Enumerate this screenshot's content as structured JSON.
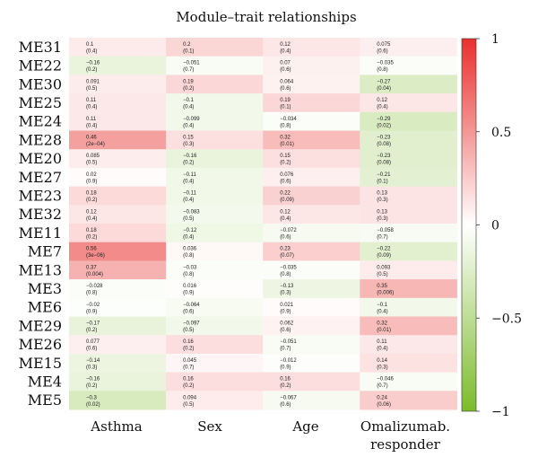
{
  "chart_data": {
    "type": "heatmap",
    "title": "Module–trait relationships",
    "rows": [
      "ME31",
      "ME22",
      "ME30",
      "ME25",
      "ME24",
      "ME28",
      "ME20",
      "ME27",
      "ME23",
      "ME32",
      "ME11",
      "ME7",
      "ME13",
      "ME3",
      "ME6",
      "ME29",
      "ME26",
      "ME15",
      "ME4",
      "ME5"
    ],
    "columns": [
      "Asthma",
      "Sex",
      "Age",
      "Omalizumab. responder"
    ],
    "values": [
      [
        0.1,
        0.2,
        0.12,
        0.075
      ],
      [
        -0.16,
        -0.051,
        0.07,
        -0.035
      ],
      [
        0.091,
        0.19,
        0.064,
        -0.27
      ],
      [
        0.11,
        -0.1,
        0.19,
        0.12
      ],
      [
        0.11,
        -0.099,
        -0.034,
        -0.29
      ],
      [
        0.46,
        0.15,
        0.32,
        -0.23
      ],
      [
        0.085,
        -0.16,
        0.15,
        -0.23
      ],
      [
        0.02,
        -0.11,
        0.076,
        -0.21
      ],
      [
        0.18,
        -0.11,
        0.22,
        0.13
      ],
      [
        0.12,
        -0.083,
        0.12,
        0.13
      ],
      [
        0.18,
        -0.12,
        -0.072,
        -0.058
      ],
      [
        0.56,
        0.036,
        0.23,
        -0.22
      ],
      [
        0.37,
        -0.03,
        -0.035,
        0.093
      ],
      [
        -0.028,
        0.016,
        -0.13,
        0.35
      ],
      [
        -0.02,
        -0.064,
        0.021,
        -0.1
      ],
      [
        -0.17,
        -0.097,
        0.062,
        0.32
      ],
      [
        0.077,
        0.16,
        -0.051,
        0.11
      ],
      [
        -0.14,
        0.045,
        -0.012,
        0.14
      ],
      [
        -0.16,
        0.16,
        0.16,
        -0.046
      ],
      [
        -0.3,
        0.094,
        -0.067,
        0.24
      ]
    ],
    "pvalues": [
      [
        "(0.4)",
        "(0.1)",
        "(0.4)",
        "(0.6)"
      ],
      [
        "(0.2)",
        "(0.7)",
        "(0.6)",
        "(0.8)"
      ],
      [
        "(0.5)",
        "(0.2)",
        "(0.6)",
        "(0.04)"
      ],
      [
        "(0.4)",
        "(0.4)",
        "(0.1)",
        "(0.4)"
      ],
      [
        "(0.4)",
        "(0.4)",
        "(0.8)",
        "(0.02)"
      ],
      [
        "(2e−04)",
        "(0.3)",
        "(0.01)",
        "(0.08)"
      ],
      [
        "(0.5)",
        "(0.2)",
        "(0.2)",
        "(0.08)"
      ],
      [
        "(0.9)",
        "(0.4)",
        "(0.6)",
        "(0.1)"
      ],
      [
        "(0.2)",
        "(0.4)",
        "(0.09)",
        "(0.3)"
      ],
      [
        "(0.4)",
        "(0.5)",
        "(0.4)",
        "(0.3)"
      ],
      [
        "(0.2)",
        "(0.4)",
        "(0.6)",
        "(0.7)"
      ],
      [
        "(3e−06)",
        "(0.8)",
        "(0.07)",
        "(0.09)"
      ],
      [
        "(0.004)",
        "(0.8)",
        "(0.8)",
        "(0.5)"
      ],
      [
        "(0.8)",
        "(0.9)",
        "(0.3)",
        "(0.006)"
      ],
      [
        "(0.9)",
        "(0.6)",
        "(0.9)",
        "(0.4)"
      ],
      [
        "(0.2)",
        "(0.5)",
        "(0.6)",
        "(0.01)"
      ],
      [
        "(0.6)",
        "(0.2)",
        "(0.7)",
        "(0.4)"
      ],
      [
        "(0.3)",
        "(0.7)",
        "(0.9)",
        "(0.3)"
      ],
      [
        "(0.2)",
        "(0.2)",
        "(0.2)",
        "(0.7)"
      ],
      [
        "(0.02)",
        "(0.5)",
        "(0.6)",
        "(0.06)"
      ]
    ],
    "colorbar": {
      "min": -1,
      "max": 1,
      "ticks": [
        1,
        0.5,
        0,
        -0.5,
        -1
      ],
      "tick_labels": [
        "1",
        "0.5",
        "0",
        "−0.5",
        "−1"
      ]
    },
    "colors": {
      "positive": "#e8302c",
      "neutral": "#ffffff",
      "negative": "#7cbb2a"
    }
  }
}
